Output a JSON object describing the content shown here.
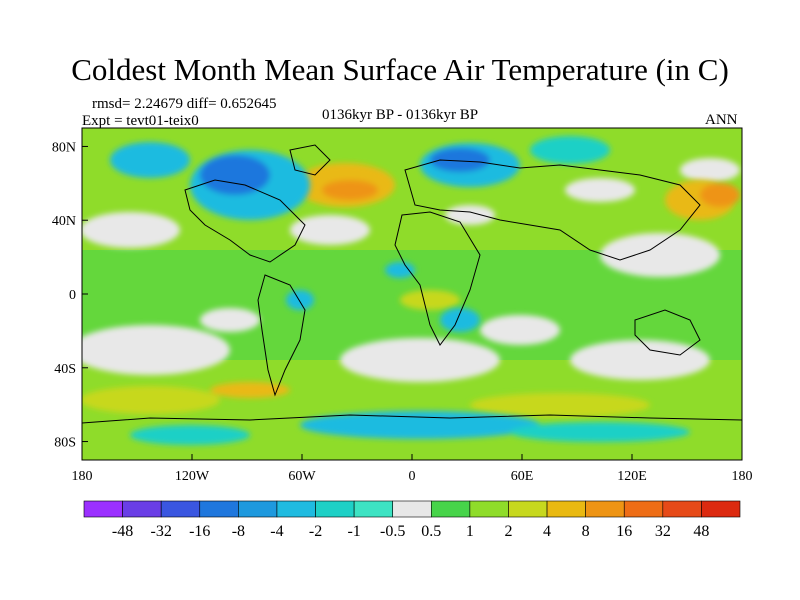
{
  "title": "Coldest Month Mean Surface Air Temperature (in C)",
  "stats_line": "rmsd= 2.24679 diff= 0.652645",
  "expt_line": "Expt = tevt01-teix0",
  "period_line": "0136kyr BP - 0136kyr BP",
  "season_label": "ANN",
  "map": {
    "lat_ticks": [
      "80N",
      "40N",
      "0",
      "40S",
      "80S"
    ],
    "lon_ticks": [
      "180",
      "120W",
      "60W",
      "0",
      "60E",
      "120E",
      "180"
    ],
    "lat_values": [
      80,
      40,
      0,
      -40,
      -80
    ],
    "lon_values": [
      -180,
      -120,
      -60,
      0,
      60,
      120,
      180
    ],
    "lat_range": [
      -90,
      90
    ],
    "lon_range": [
      -180,
      180
    ]
  },
  "colorbar": {
    "labels": [
      "-48",
      "-32",
      "-16",
      "-8",
      "-4",
      "-2",
      "-1",
      "-0.5",
      "0.5",
      "1",
      "2",
      "4",
      "8",
      "16",
      "32",
      "48"
    ],
    "colors": [
      "#9b30ff",
      "#6a3ee6",
      "#3a56e0",
      "#1f77dd",
      "#1e99de",
      "#1fbbe0",
      "#1ed0c6",
      "#3de3c3",
      "#e8e8e8",
      "#47d44a",
      "#8fdc2a",
      "#c7d81e",
      "#e9b912",
      "#ee9414",
      "#ee6d16",
      "#e64a18",
      "#dc2a10"
    ]
  }
}
